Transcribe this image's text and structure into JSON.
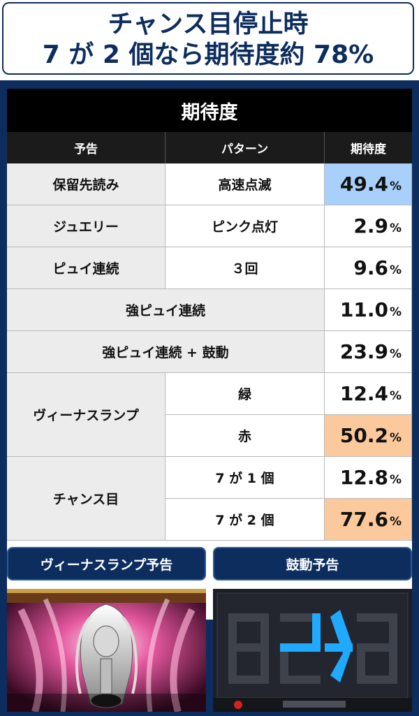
{
  "headline": {
    "line1": "チャンス目停止時",
    "line2": "7 が 2 個なら期待度約 78%"
  },
  "table": {
    "title": "期待度",
    "headers": [
      "予告",
      "パターン",
      "期待度"
    ],
    "rows": [
      {
        "yokoku": "保留先読み",
        "pattern": "高速点滅",
        "value": "49.4",
        "highlight": "#a8d0fb"
      },
      {
        "yokoku": "ジュエリー",
        "pattern": "ピンク点灯",
        "value": "2.9"
      },
      {
        "yokoku": "ピュイ連続",
        "pattern": "３回",
        "value": "9.6"
      },
      {
        "yokoku": "強ピュイ連続",
        "value": "11.0"
      },
      {
        "yokoku": "強ピュイ連続 + 鼓動",
        "value": "23.9"
      },
      {
        "yokoku": "ヴィーナスランプ",
        "pattern": "緑",
        "value": "12.4"
      },
      {
        "pattern": "赤",
        "value": "50.2",
        "highlight": "#fbc99b"
      },
      {
        "yokoku": "チャンス目",
        "pattern": "7 が 1 個",
        "value": "12.8"
      },
      {
        "pattern": "7 が 2 個",
        "value": "77.6",
        "highlight": "#fbc99b"
      }
    ],
    "percent_sign": "%"
  },
  "panels": {
    "left_tab": "ヴィーナスランプ予告",
    "right_tab": "鼓動予告"
  }
}
